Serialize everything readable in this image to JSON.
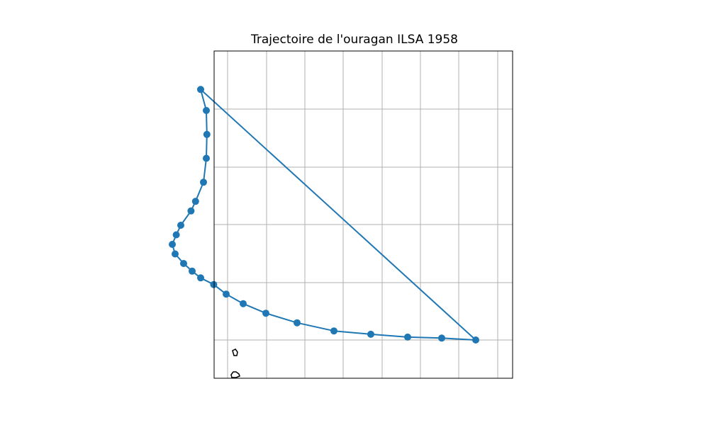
{
  "title": "Trajectoire de l'ouragan ILSA 1958",
  "colors": {
    "track": "#1f77b4",
    "grid": "#b0b0b0",
    "frame": "#000000",
    "coastline": "#000000"
  },
  "chart_data": {
    "type": "scatter",
    "title": "Trajectoire de l'ouragan ILSA 1958",
    "grid": true,
    "axes_ticks_labels_visible": false,
    "track": {
      "marker": "circle",
      "connected": true,
      "closed_path_from_last_to_first": true,
      "points": [
        {
          "lon": 0.37,
          "lat": 0.0
        },
        {
          "lon": 0.31,
          "lat": 0.02
        },
        {
          "lon": 0.25,
          "lat": 0.03
        },
        {
          "lon": 0.185,
          "lat": 0.06
        },
        {
          "lon": 0.12,
          "lat": 0.095
        },
        {
          "lon": 0.055,
          "lat": 0.18
        },
        {
          "lon": 0.0,
          "lat": 0.28
        },
        {
          "lon": -0.04,
          "lat": 0.38
        },
        {
          "lon": -0.07,
          "lat": 0.48
        },
        {
          "lon": -0.092,
          "lat": 0.58
        },
        {
          "lon": -0.115,
          "lat": 0.65
        },
        {
          "lon": -0.13,
          "lat": 0.72
        },
        {
          "lon": -0.145,
          "lat": 0.8
        },
        {
          "lon": -0.16,
          "lat": 0.9
        },
        {
          "lon": -0.165,
          "lat": 1.0
        },
        {
          "lon": -0.158,
          "lat": 1.1
        },
        {
          "lon": -0.15,
          "lat": 1.2
        },
        {
          "lon": -0.132,
          "lat": 1.35
        },
        {
          "lon": -0.124,
          "lat": 1.45
        },
        {
          "lon": -0.11,
          "lat": 1.65
        },
        {
          "lon": -0.105,
          "lat": 1.9
        },
        {
          "lon": -0.104,
          "lat": 2.15
        },
        {
          "lon": -0.105,
          "lat": 2.4
        },
        {
          "lon": -0.115,
          "lat": 2.62
        }
      ]
    }
  }
}
